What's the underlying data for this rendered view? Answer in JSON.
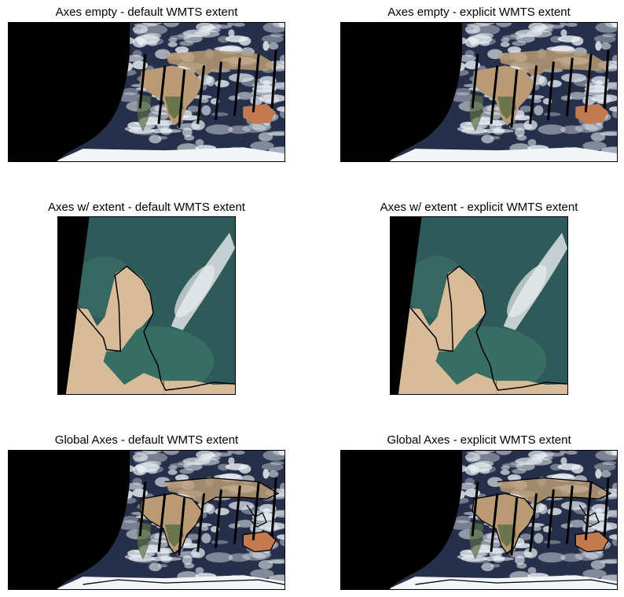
{
  "figure": {
    "panels": [
      {
        "title": "Axes empty - default WMTS extent",
        "view": "global",
        "coastlines": false
      },
      {
        "title": "Axes empty - explicit WMTS extent",
        "view": "global",
        "coastlines": false
      },
      {
        "title": "Axes w/ extent - default WMTS extent",
        "view": "regional",
        "coastlines": true
      },
      {
        "title": "Axes w/ extent - explicit WMTS extent",
        "view": "regional",
        "coastlines": true
      },
      {
        "title": "Global Axes - default WMTS extent",
        "view": "global",
        "coastlines": true
      },
      {
        "title": "Global Axes - explicit WMTS extent",
        "view": "global",
        "coastlines": true
      }
    ]
  },
  "colors": {
    "nodata": "#000000",
    "ocean": "#26304a",
    "cloud": "#e9eef3",
    "desert": "#b99a75",
    "vegetation": "#5c6e46",
    "ice": "#f3f6f8",
    "regional_sea": "#2f5a5a",
    "regional_sand": "#d8bc99"
  }
}
